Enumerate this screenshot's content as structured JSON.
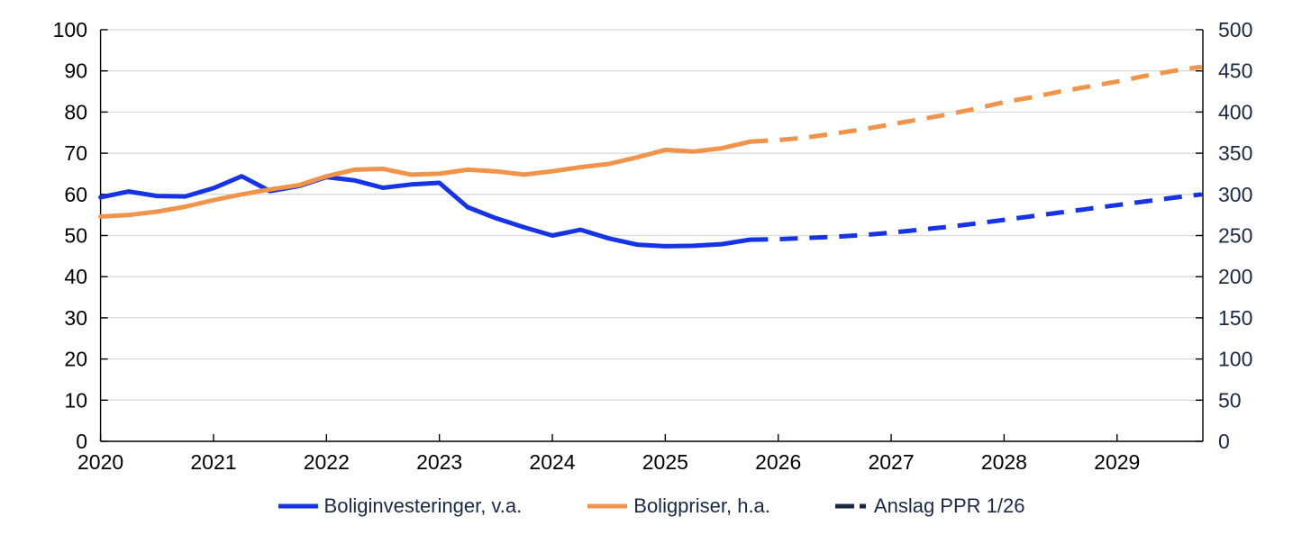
{
  "chart_data": {
    "type": "line",
    "title": "",
    "xlabel": "",
    "ylabel_left": "",
    "ylabel_right": "",
    "x_axis": {
      "tick_values": [
        2020,
        2021,
        2022,
        2023,
        2024,
        2025,
        2026,
        2027,
        2028,
        2029
      ],
      "tick_labels": [
        "2020",
        "2021",
        "2022",
        "2023",
        "2024",
        "2025",
        "2026",
        "2027",
        "2028",
        "2029"
      ],
      "range": [
        2020.0,
        2029.79
      ]
    },
    "y_left": {
      "min": 0,
      "max": 100,
      "step": 10,
      "tick_values": [
        0,
        10,
        20,
        30,
        40,
        50,
        60,
        70,
        80,
        90,
        100
      ],
      "tick_labels": [
        "0",
        "10",
        "20",
        "30",
        "40",
        "50",
        "60",
        "70",
        "80",
        "90",
        "100"
      ],
      "label_color": "#000000"
    },
    "y_right": {
      "min": 0,
      "max": 500,
      "step": 50,
      "tick_values": [
        0,
        50,
        100,
        150,
        200,
        250,
        300,
        350,
        400,
        450,
        500
      ],
      "tick_labels": [
        "0",
        "50",
        "100",
        "150",
        "200",
        "250",
        "300",
        "350",
        "400",
        "450",
        "500"
      ],
      "label_color": "#1b2845"
    },
    "grid": "horizontal",
    "gridline_color": "#d9d9d9",
    "axis_color": "#000000",
    "series": [
      {
        "name": "Boliginvesteringer, v.a.",
        "axis": "left",
        "style": "solid",
        "color": "#1634e4",
        "x_start": 2020.0,
        "x_step": 0.25,
        "values": [
          59.3,
          60.7,
          59.6,
          59.5,
          61.5,
          64.4,
          60.8,
          62.0,
          64.2,
          63.4,
          61.6,
          62.4,
          62.8,
          56.9,
          54.2,
          52.0,
          50.0,
          51.4,
          49.3,
          47.8,
          47.4,
          47.5,
          47.9,
          49.0
        ]
      },
      {
        "name": "Boligpriser, h.a.",
        "axis": "right",
        "style": "solid",
        "color": "#f0944c",
        "x_start": 2020.0,
        "x_step": 0.25,
        "values": [
          273,
          275,
          279,
          285,
          293,
          300,
          306,
          311,
          322,
          330,
          331,
          324,
          325,
          330,
          328,
          324,
          328,
          333,
          337,
          345,
          354,
          352,
          356,
          364
        ]
      },
      {
        "name": "Anslag PPR 1/26 (boliginvesteringer, v.a.)",
        "axis": "left",
        "style": "dashed",
        "color": "#1634e4",
        "x_start": 2025.75,
        "x_step": 0.25,
        "values": [
          49.0,
          49.1,
          49.4,
          49.7,
          50.1,
          50.7,
          51.4,
          52.1,
          52.9,
          53.8,
          54.7,
          55.6,
          56.5,
          57.4,
          58.3,
          59.2,
          60.0
        ]
      },
      {
        "name": "Anslag PPR 1/26 (boligpriser, h.a.)",
        "axis": "right",
        "style": "dashed",
        "color": "#f0944c",
        "x_start": 2025.75,
        "x_step": 0.25,
        "values": [
          364,
          366,
          369,
          374,
          379,
          385,
          391,
          397,
          404,
          412,
          418,
          425,
          431,
          437,
          444,
          450,
          455
        ]
      }
    ],
    "legend": {
      "position": "bottom-center",
      "items": [
        {
          "label": "Boliginvesteringer, v.a.",
          "color": "#1634e4",
          "style": "solid"
        },
        {
          "label": "Boligpriser, h.a.",
          "color": "#f0944c",
          "style": "solid"
        },
        {
          "label": "Anslag PPR 1/26",
          "color": "#1b2845",
          "style": "dash-dot"
        }
      ]
    }
  }
}
